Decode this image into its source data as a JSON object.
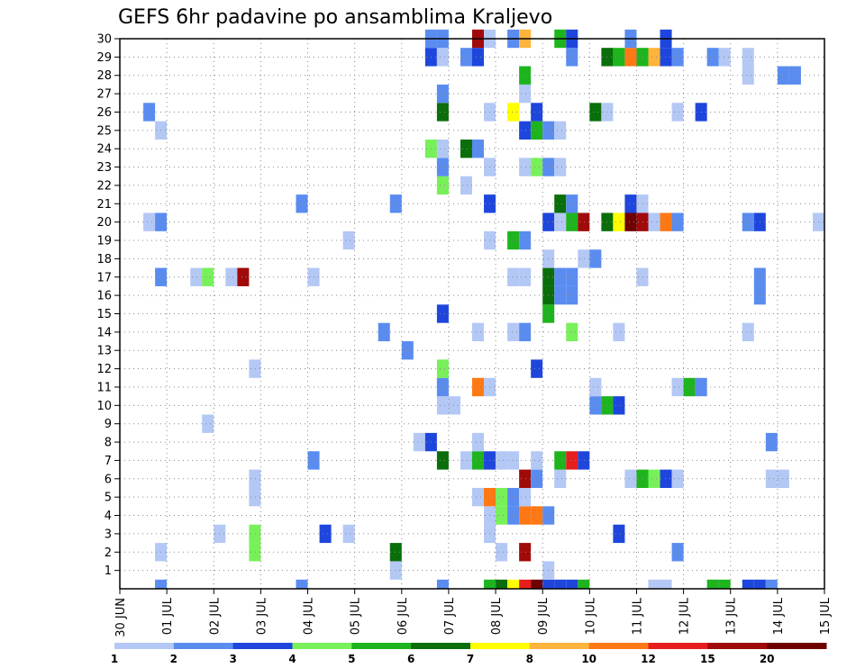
{
  "chart_data": {
    "type": "heatmap",
    "title": "GEFS 6hr padavine po ansamblima Kraljevo",
    "x_ticks": [
      "30 JUN",
      "01 JUL",
      "02 JUL",
      "03 JUL",
      "04 JUL",
      "05 JUL",
      "06 JUL",
      "07 JUL",
      "08 JUL",
      "09 JUL",
      "10 JUL",
      "11 JUL",
      "12 JUL",
      "13 JUL",
      "14 JUL",
      "15 JUL"
    ],
    "y_ticks": [
      "1",
      "2",
      "3",
      "4",
      "5",
      "6",
      "7",
      "8",
      "9",
      "10",
      "11",
      "12",
      "13",
      "14",
      "15",
      "16",
      "17",
      "18",
      "19",
      "20",
      "21",
      "22",
      "23",
      "24",
      "25",
      "26",
      "27",
      "28",
      "29",
      "30"
    ],
    "x_range_days": [
      0,
      15
    ],
    "y_range": [
      0,
      30
    ],
    "grid": true,
    "colorbar": {
      "labels": [
        "1",
        "2",
        "3",
        "4",
        "5",
        "6",
        "7",
        "8",
        "10",
        "12",
        "15",
        "20"
      ],
      "colors": [
        "#b4c8f5",
        "#5a8cf0",
        "#1e46dc",
        "#78f05a",
        "#1eb41e",
        "#0a6e0a",
        "#ffff00",
        "#ffb43c",
        "#ff7814",
        "#e61e1e",
        "#a00a0a",
        "#6e0000"
      ]
    },
    "cells": [
      [
        0.75,
        0,
        1
      ],
      [
        3.75,
        0,
        1
      ],
      [
        6.75,
        0,
        1
      ],
      [
        7.75,
        0,
        4
      ],
      [
        8.0,
        0,
        5
      ],
      [
        8.25,
        0,
        6
      ],
      [
        8.5,
        0,
        9
      ],
      [
        8.75,
        0,
        11
      ],
      [
        9.0,
        0,
        2
      ],
      [
        9.25,
        0,
        2
      ],
      [
        9.5,
        0,
        2
      ],
      [
        9.75,
        0,
        4
      ],
      [
        11.25,
        0,
        0
      ],
      [
        11.5,
        0,
        0
      ],
      [
        12.5,
        0,
        4
      ],
      [
        12.75,
        0,
        4
      ],
      [
        13.25,
        0,
        2
      ],
      [
        13.5,
        0,
        2
      ],
      [
        13.75,
        0,
        1
      ],
      [
        5.75,
        1,
        0
      ],
      [
        9.0,
        1,
        0
      ],
      [
        0.75,
        2,
        0
      ],
      [
        5.75,
        2,
        5
      ],
      [
        8.0,
        2,
        0
      ],
      [
        8.5,
        2,
        10
      ],
      [
        11.75,
        2,
        1
      ],
      [
        2.0,
        3,
        0
      ],
      [
        2.75,
        3,
        3
      ],
      [
        4.25,
        3,
        2
      ],
      [
        4.75,
        3,
        0
      ],
      [
        7.75,
        3,
        0
      ],
      [
        10.5,
        3,
        2
      ],
      [
        2.75,
        2,
        3
      ],
      [
        7.75,
        4,
        0
      ],
      [
        8.0,
        4,
        3
      ],
      [
        8.25,
        4,
        1
      ],
      [
        8.5,
        4,
        8
      ],
      [
        8.75,
        4,
        8
      ],
      [
        9.0,
        4,
        1
      ],
      [
        2.75,
        5,
        0
      ],
      [
        7.5,
        5,
        0
      ],
      [
        7.75,
        5,
        8
      ],
      [
        8.0,
        5,
        3
      ],
      [
        8.25,
        5,
        1
      ],
      [
        8.5,
        5,
        0
      ],
      [
        2.75,
        6,
        0
      ],
      [
        8.5,
        6,
        10
      ],
      [
        8.75,
        6,
        1
      ],
      [
        9.25,
        6,
        0
      ],
      [
        10.75,
        6,
        0
      ],
      [
        11.0,
        6,
        4
      ],
      [
        11.25,
        6,
        3
      ],
      [
        11.5,
        6,
        2
      ],
      [
        11.75,
        6,
        0
      ],
      [
        13.75,
        6,
        0
      ],
      [
        14.0,
        6,
        0
      ],
      [
        4.0,
        7,
        1
      ],
      [
        6.75,
        7,
        5
      ],
      [
        7.25,
        7,
        0
      ],
      [
        7.5,
        7,
        4
      ],
      [
        7.75,
        7,
        2
      ],
      [
        8.0,
        7,
        0
      ],
      [
        8.25,
        7,
        0
      ],
      [
        8.75,
        7,
        0
      ],
      [
        9.25,
        7,
        4
      ],
      [
        9.5,
        7,
        9
      ],
      [
        9.75,
        7,
        2
      ],
      [
        6.25,
        8,
        0
      ],
      [
        6.5,
        8,
        2
      ],
      [
        7.5,
        8,
        0
      ],
      [
        13.75,
        8,
        1
      ],
      [
        1.75,
        9,
        0
      ],
      [
        6.75,
        10,
        0
      ],
      [
        7.0,
        10,
        0
      ],
      [
        10.0,
        10,
        1
      ],
      [
        10.25,
        10,
        4
      ],
      [
        10.5,
        10,
        2
      ],
      [
        6.75,
        11,
        1
      ],
      [
        7.5,
        11,
        8
      ],
      [
        7.75,
        11,
        0
      ],
      [
        10.0,
        11,
        0
      ],
      [
        11.75,
        11,
        0
      ],
      [
        12.0,
        11,
        4
      ],
      [
        12.25,
        11,
        1
      ],
      [
        2.75,
        12,
        0
      ],
      [
        6.75,
        12,
        3
      ],
      [
        8.75,
        12,
        2
      ],
      [
        6.0,
        13,
        1
      ],
      [
        5.5,
        14,
        1
      ],
      [
        7.5,
        14,
        0
      ],
      [
        8.25,
        14,
        0
      ],
      [
        8.5,
        14,
        1
      ],
      [
        9.5,
        14,
        3
      ],
      [
        10.5,
        14,
        0
      ],
      [
        13.25,
        14,
        0
      ],
      [
        6.75,
        15,
        2
      ],
      [
        9.0,
        15,
        4
      ],
      [
        9.0,
        16,
        5
      ],
      [
        9.25,
        16,
        1
      ],
      [
        9.5,
        16,
        1
      ],
      [
        13.5,
        16,
        1
      ],
      [
        0.75,
        17,
        1
      ],
      [
        1.5,
        17,
        0
      ],
      [
        1.75,
        17,
        3
      ],
      [
        2.25,
        17,
        0
      ],
      [
        2.5,
        17,
        10
      ],
      [
        4.0,
        17,
        0
      ],
      [
        8.25,
        17,
        0
      ],
      [
        8.5,
        17,
        0
      ],
      [
        9.0,
        17,
        5
      ],
      [
        9.25,
        17,
        1
      ],
      [
        9.5,
        17,
        1
      ],
      [
        11.0,
        17,
        0
      ],
      [
        13.5,
        17,
        1
      ],
      [
        9.0,
        18,
        0
      ],
      [
        9.75,
        18,
        0
      ],
      [
        10.0,
        18,
        1
      ],
      [
        4.75,
        19,
        0
      ],
      [
        7.75,
        19,
        0
      ],
      [
        8.25,
        19,
        4
      ],
      [
        8.5,
        19,
        1
      ],
      [
        0.5,
        20,
        0
      ],
      [
        0.75,
        20,
        1
      ],
      [
        9.0,
        20,
        2
      ],
      [
        9.25,
        20,
        0
      ],
      [
        9.5,
        20,
        4
      ],
      [
        9.75,
        20,
        10
      ],
      [
        10.25,
        20,
        5
      ],
      [
        10.5,
        20,
        6
      ],
      [
        10.75,
        20,
        11
      ],
      [
        11.0,
        20,
        10
      ],
      [
        11.25,
        20,
        0
      ],
      [
        11.5,
        20,
        8
      ],
      [
        11.75,
        20,
        1
      ],
      [
        13.25,
        20,
        1
      ],
      [
        13.5,
        20,
        2
      ],
      [
        14.75,
        20,
        0
      ],
      [
        3.75,
        21,
        1
      ],
      [
        5.75,
        21,
        1
      ],
      [
        7.75,
        21,
        2
      ],
      [
        9.25,
        21,
        5
      ],
      [
        9.5,
        21,
        1
      ],
      [
        10.75,
        21,
        2
      ],
      [
        11.0,
        21,
        0
      ],
      [
        6.75,
        22,
        3
      ],
      [
        7.25,
        22,
        0
      ],
      [
        6.75,
        23,
        1
      ],
      [
        7.75,
        23,
        0
      ],
      [
        8.5,
        23,
        0
      ],
      [
        8.75,
        23,
        3
      ],
      [
        9.0,
        23,
        1
      ],
      [
        9.25,
        23,
        0
      ],
      [
        6.5,
        24,
        3
      ],
      [
        6.75,
        24,
        0
      ],
      [
        7.25,
        24,
        5
      ],
      [
        7.5,
        24,
        1
      ],
      [
        0.75,
        25,
        0
      ],
      [
        8.5,
        25,
        2
      ],
      [
        8.75,
        25,
        4
      ],
      [
        9.0,
        25,
        1
      ],
      [
        9.25,
        25,
        0
      ],
      [
        0.5,
        26,
        1
      ],
      [
        6.75,
        26,
        5
      ],
      [
        7.75,
        26,
        0
      ],
      [
        8.25,
        26,
        6
      ],
      [
        8.75,
        26,
        2
      ],
      [
        10.0,
        26,
        5
      ],
      [
        10.25,
        26,
        0
      ],
      [
        11.75,
        26,
        0
      ],
      [
        12.25,
        26,
        2
      ],
      [
        6.75,
        27,
        1
      ],
      [
        8.5,
        27,
        0
      ],
      [
        8.5,
        28,
        4
      ],
      [
        13.25,
        28,
        0
      ],
      [
        14.0,
        28,
        1
      ],
      [
        14.25,
        28,
        1
      ],
      [
        6.5,
        29,
        2
      ],
      [
        6.75,
        29,
        0
      ],
      [
        7.25,
        29,
        1
      ],
      [
        7.5,
        29,
        2
      ],
      [
        9.5,
        29,
        1
      ],
      [
        10.25,
        29,
        5
      ],
      [
        10.5,
        29,
        4
      ],
      [
        10.75,
        29,
        8
      ],
      [
        11.0,
        29,
        4
      ],
      [
        11.25,
        29,
        7
      ],
      [
        11.5,
        29,
        2
      ],
      [
        11.75,
        29,
        1
      ],
      [
        12.5,
        29,
        1
      ],
      [
        12.75,
        29,
        0
      ],
      [
        13.25,
        29,
        0
      ],
      [
        6.5,
        30,
        1
      ],
      [
        6.75,
        30,
        1
      ],
      [
        7.5,
        30,
        10
      ],
      [
        7.75,
        30,
        0
      ],
      [
        8.25,
        30,
        1
      ],
      [
        8.5,
        30,
        7
      ],
      [
        9.25,
        30,
        4
      ],
      [
        9.5,
        30,
        2
      ],
      [
        10.75,
        30,
        1
      ],
      [
        11.5,
        30,
        2
      ]
    ]
  }
}
